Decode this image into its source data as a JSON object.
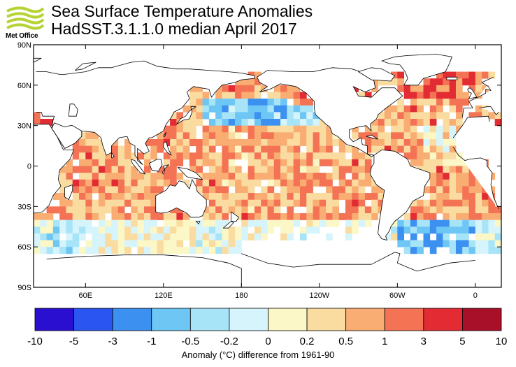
{
  "header": {
    "title_line1": "Sea Surface Temperature Anomalies",
    "title_line2": "HadSST.3.1.1.0 median April 2017",
    "logo_text": "Met Office"
  },
  "map": {
    "lat_ticks": [
      "90N",
      "60N",
      "30N",
      "0",
      "30S",
      "60S",
      "90S"
    ],
    "lon_ticks": [
      "60E",
      "120E",
      "180",
      "120W",
      "60W",
      "0"
    ],
    "grid_resolution_deg": 5
  },
  "colorbar": {
    "labels": [
      "-10",
      "-5",
      "-3",
      "-1",
      "-0.5",
      "-0.2",
      "0",
      "0.2",
      "0.5",
      "1",
      "3",
      "5",
      "10"
    ],
    "colors": [
      "#2a0fd0",
      "#2a55f0",
      "#3b90f0",
      "#6ec6f5",
      "#a8e4f8",
      "#d6f4fb",
      "#fbf7c6",
      "#fadca0",
      "#f9ad72",
      "#f47355",
      "#e22b32",
      "#a8102a"
    ],
    "title": "Anomaly (°C) difference from 1961-90"
  },
  "colors": {
    "land": "#ffffff",
    "coast": "#000000",
    "frame": "#000000"
  }
}
